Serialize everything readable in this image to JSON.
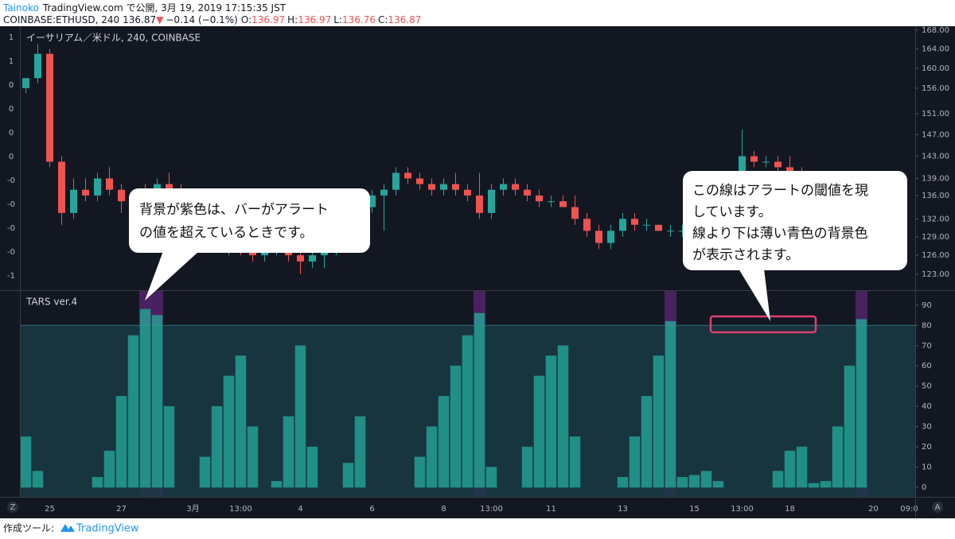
{
  "header": {
    "author": "Tainoko",
    "published": "TradingView.com で公開, 3月 19, 2019 17:15:35 JST",
    "symbol": "COINBASE:ETHUSD, 240",
    "last": "136.87",
    "arrow": "▼",
    "change": "−0.14 (−0.1%)",
    "ohlc": [
      {
        "label": "O:",
        "value": "136.97"
      },
      {
        "label": "H:",
        "value": "136.97"
      },
      {
        "label": "L:",
        "value": "136.76"
      },
      {
        "label": "C:",
        "value": "136.87"
      }
    ],
    "left_scale": [
      "1",
      "1",
      "0",
      "0",
      "0",
      "0",
      "-0",
      "-0",
      "-0",
      "-0",
      "-1"
    ]
  },
  "chart_data": [
    {
      "type": "candlestick",
      "title": "イーサリアム／米ドル, 240, COINBASE",
      "categories": [
        null,
        null,
        "25",
        null,
        null,
        null,
        null,
        null,
        "27",
        null,
        null,
        null,
        null,
        null,
        "3月",
        null,
        null,
        null,
        "13:00",
        null,
        null,
        null,
        null,
        "4",
        null,
        null,
        null,
        null,
        null,
        "6",
        null,
        null,
        null,
        null,
        null,
        "8",
        null,
        null,
        null,
        "13:00",
        null,
        null,
        null,
        null,
        "11",
        null,
        null,
        null,
        null,
        null,
        "13",
        null,
        null,
        null,
        null,
        null,
        "15",
        null,
        null,
        null,
        "13:00",
        null,
        null,
        null,
        "18",
        null,
        null,
        null,
        null,
        null,
        null,
        "20",
        null,
        null,
        "09:0"
      ],
      "open": [
        156,
        158,
        163,
        142,
        133,
        137,
        136,
        139,
        137,
        135,
        136,
        135,
        138,
        137,
        135,
        133,
        131,
        128,
        129,
        127,
        126,
        127,
        128,
        126,
        125,
        126,
        127,
        129,
        132,
        134,
        136,
        137,
        140,
        139,
        138,
        137,
        138,
        137,
        136,
        133,
        137,
        138,
        137,
        136,
        135,
        135,
        134,
        132,
        130,
        128,
        130,
        132,
        131,
        131,
        130,
        130,
        130,
        129,
        130,
        133,
        135,
        143,
        142,
        142,
        141,
        140,
        139,
        138,
        139,
        138,
        136.97,
        null,
        null,
        null,
        null
      ],
      "high": [
        158,
        165,
        164,
        143,
        139,
        139,
        140,
        141,
        138,
        137,
        138,
        139,
        140,
        138,
        136,
        134,
        132,
        130,
        130,
        128,
        128,
        129,
        129,
        127,
        127,
        128,
        130,
        133,
        135,
        137,
        138,
        141,
        141,
        140,
        139,
        139,
        140,
        138,
        140,
        138,
        139,
        139,
        138,
        137,
        136,
        136,
        136,
        133,
        131,
        131,
        133,
        133,
        132,
        131,
        131,
        131,
        131,
        130,
        134,
        136,
        148,
        144,
        143,
        143,
        143,
        141,
        140,
        140,
        140,
        139,
        136.97,
        null,
        null,
        null,
        null
      ],
      "low": [
        155,
        157,
        141,
        131,
        132,
        135,
        135,
        136,
        133,
        133,
        134,
        134,
        136,
        134,
        132,
        130,
        127,
        126,
        126,
        125,
        125,
        126,
        125,
        123,
        124,
        124,
        126,
        128,
        131,
        133,
        130,
        136,
        138,
        137,
        136,
        136,
        136,
        135,
        132,
        132,
        136,
        136,
        135,
        134,
        134,
        134,
        131,
        129,
        127,
        127,
        129,
        130,
        130,
        130,
        129,
        129,
        129,
        128,
        129,
        132,
        134,
        141,
        141,
        140,
        139,
        138,
        137,
        137,
        137,
        136,
        136.76,
        null,
        null,
        null,
        null
      ],
      "close": [
        158,
        163,
        142,
        133,
        137,
        136,
        139,
        137,
        135,
        136,
        135,
        138,
        137,
        135,
        133,
        131,
        128,
        129,
        127,
        126,
        127,
        128,
        126,
        125,
        126,
        127,
        129,
        132,
        134,
        136,
        137,
        140,
        139,
        138,
        137,
        138,
        137,
        136,
        133,
        137,
        138,
        137,
        136,
        135,
        135,
        134,
        132,
        130,
        128,
        130,
        132,
        131,
        131,
        130,
        130,
        130,
        129,
        130,
        133,
        135,
        143,
        142,
        142,
        141,
        140,
        139,
        138,
        139,
        138,
        137,
        136.87,
        null,
        null,
        null,
        null
      ],
      "up_color": "#26a69a",
      "down_color": "#ef5350",
      "log_scale": true,
      "ylim": [
        120.5,
        168.5
      ],
      "yticks": [
        {
          "value": 168,
          "label": "168.00"
        },
        {
          "value": 164,
          "label": "164.00"
        },
        {
          "value": 160,
          "label": "160.00"
        },
        {
          "value": 156,
          "label": "156.00"
        },
        {
          "value": 151,
          "label": "151.00"
        },
        {
          "value": 147,
          "label": "147.00"
        },
        {
          "value": 143,
          "label": "143.00"
        },
        {
          "value": 139,
          "label": "139.00"
        },
        {
          "value": 136,
          "label": "136.00"
        },
        {
          "value": 132,
          "label": "132.00"
        },
        {
          "value": 129,
          "label": "129.00"
        },
        {
          "value": 126,
          "label": "126.00"
        },
        {
          "value": 123,
          "label": "123.00"
        }
      ]
    },
    {
      "type": "bar",
      "title": "TARS ver.4",
      "values": [
        25,
        8,
        0,
        0,
        0,
        0,
        5,
        18,
        45,
        75,
        88,
        85,
        40,
        0,
        0,
        15,
        40,
        55,
        65,
        30,
        0,
        3,
        35,
        70,
        20,
        0,
        0,
        12,
        35,
        0,
        0,
        0,
        0,
        15,
        30,
        45,
        60,
        75,
        86,
        10,
        0,
        0,
        20,
        55,
        65,
        70,
        25,
        0,
        0,
        0,
        5,
        25,
        45,
        65,
        82,
        5,
        6,
        8,
        3,
        0,
        0,
        0,
        0,
        8,
        18,
        20,
        2,
        3,
        30,
        60,
        83,
        null,
        null,
        null,
        null
      ],
      "color": "#26a69a",
      "threshold": 80,
      "zone_color": "#1a3a44",
      "alert_color": "#4a2160",
      "ylim": [
        -4.7,
        97
      ],
      "yticks": [
        0,
        10,
        20,
        30,
        40,
        50,
        60,
        70,
        80,
        90
      ]
    }
  ],
  "annotations": {
    "callout_1": [
      "背景が紫色は、バーがアラート",
      "の値を超えているときです。"
    ],
    "callout_2": [
      "この線はアラートの閾値を現",
      "しています。",
      "線より下は薄い青色の背景色",
      "が表示されます。"
    ]
  },
  "footer": {
    "made_with": "作成ツール:",
    "brand": "TradingView",
    "left_button": "Z",
    "right_button": "A"
  }
}
